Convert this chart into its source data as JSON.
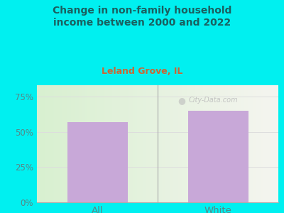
{
  "title": "Change in non-family household\nincome between 2000 and 2022",
  "subtitle": "Leland Grove, IL",
  "categories": [
    "All",
    "White"
  ],
  "values": [
    57,
    65
  ],
  "bar_color": "#c8a8d8",
  "bg_color": "#00f0f0",
  "title_color": "#1a6060",
  "subtitle_color": "#cc6633",
  "tick_color": "#558888",
  "yticks": [
    0,
    25,
    50,
    75
  ],
  "ytick_labels": [
    "0%",
    "25%",
    "50%",
    "75%"
  ],
  "ylim": [
    0,
    83
  ],
  "watermark": "City-Data.com",
  "watermark_color": "#bbbbbb",
  "separator_color": "#aaaaaa",
  "grid_line_color": "#dddddd"
}
